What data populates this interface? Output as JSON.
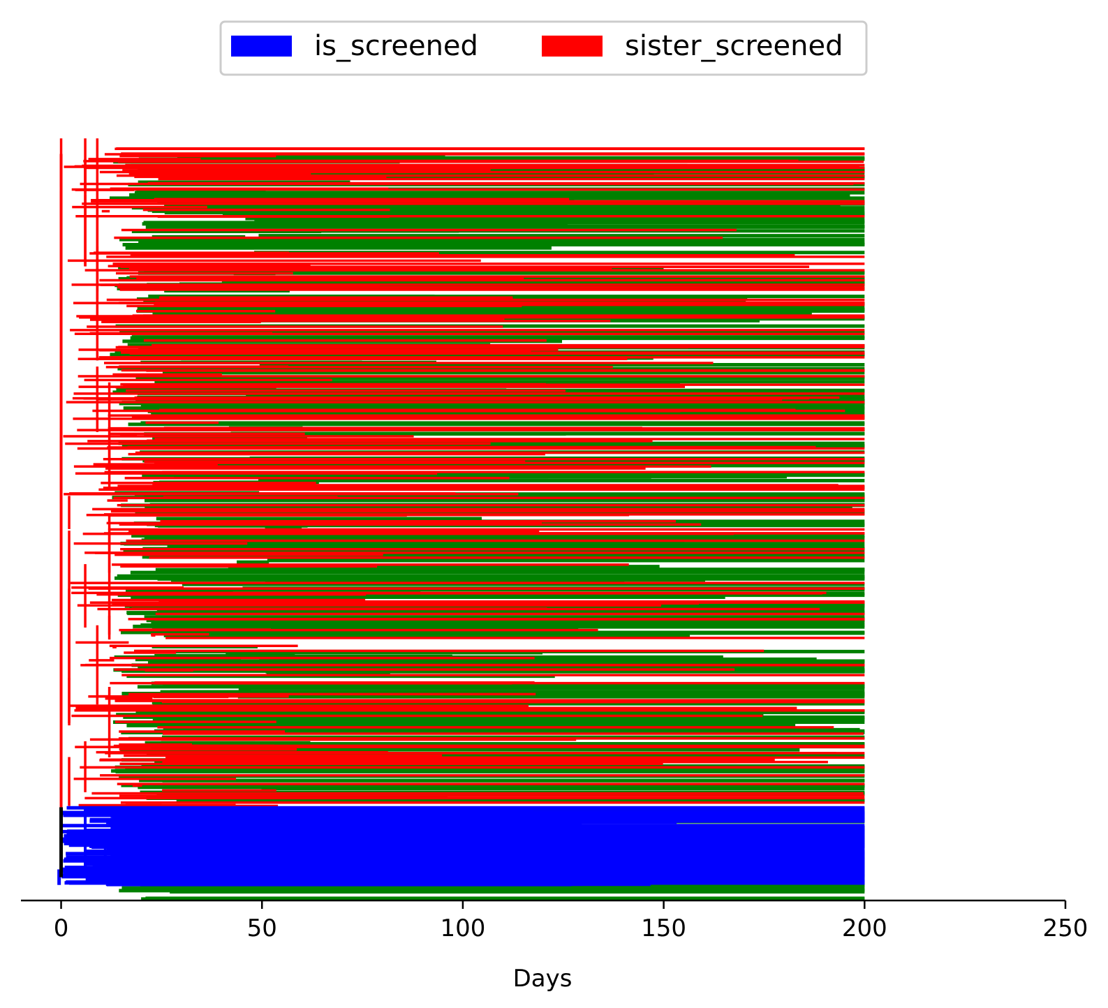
{
  "chart_data": {
    "type": "tree",
    "xlabel": "Days",
    "xlim": [
      -10,
      250
    ],
    "x_ticks": [
      0,
      50,
      100,
      150,
      200,
      250
    ],
    "y_axis": "hidden",
    "legend": {
      "placement": "top-center",
      "entries": [
        {
          "label": "is_screened",
          "color": "#0000ff"
        },
        {
          "label": "sister_screened",
          "color": "#ff0000"
        }
      ]
    },
    "colors": {
      "is_screened": "#0000ff",
      "sister_screened": "#ff0000",
      "other_branch": "#008000",
      "root": "#000000"
    },
    "series": [
      {
        "key": "is_screened",
        "y_range": [
          0.02,
          0.12
        ],
        "branch_start_days": [
          0,
          6,
          11,
          13
        ],
        "branch_end_days": [
          105,
          200
        ]
      },
      {
        "key": "sister_screened",
        "y_range": [
          0.12,
          0.98
        ],
        "branch_start_days": [
          0,
          2,
          6,
          9,
          12,
          13,
          20
        ],
        "branch_end_days": [
          60,
          100,
          150,
          200
        ]
      },
      {
        "key": "other_branch",
        "y_range": [
          0.0,
          0.96
        ],
        "branch_start_days": [
          12,
          14,
          20,
          40
        ],
        "branch_end_days": [
          100,
          150,
          200
        ]
      }
    ],
    "max_day": 200
  }
}
